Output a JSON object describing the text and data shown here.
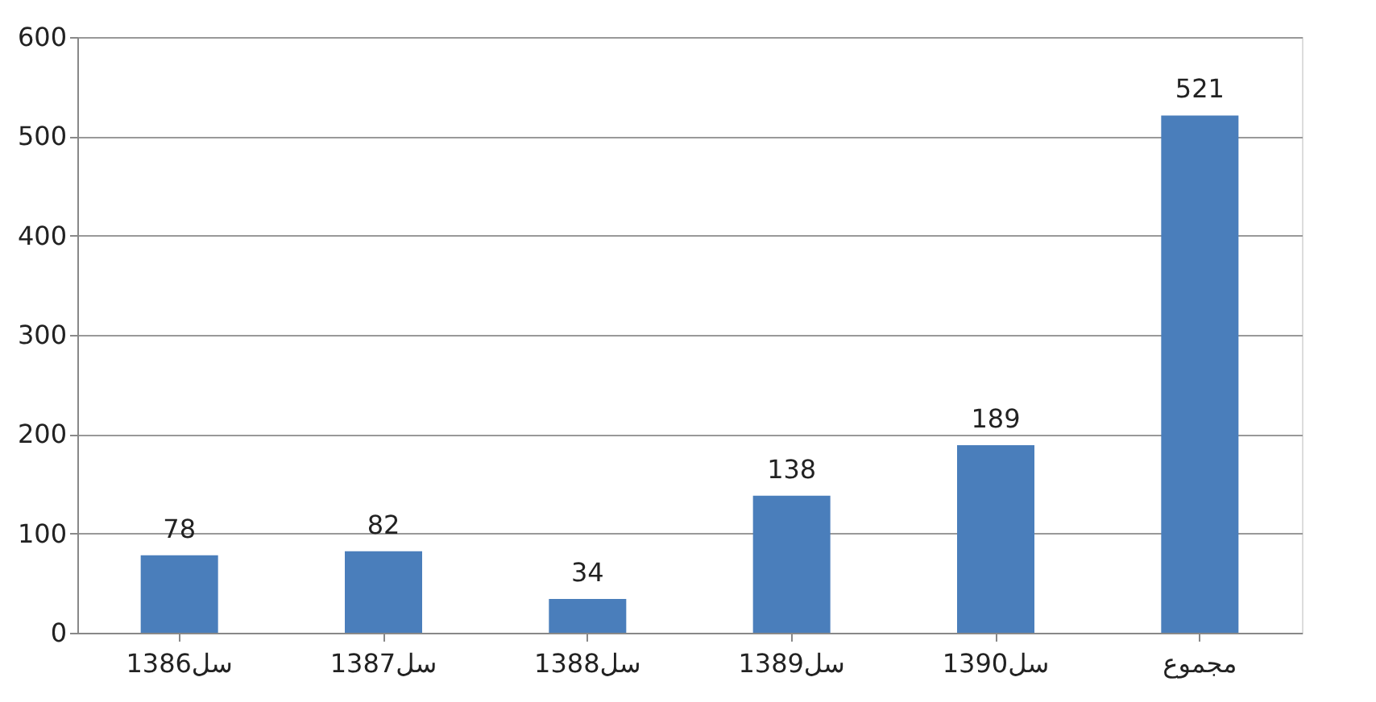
{
  "chart_data": {
    "type": "bar",
    "categories": [
      "1386سل",
      "1387سل",
      "1388سل",
      "1389سل",
      "1390سل",
      "مجموع"
    ],
    "values": [
      78,
      82,
      34,
      138,
      189,
      521
    ],
    "color": "#4a7ebb",
    "ylim": [
      0,
      600
    ],
    "yticks": [
      0,
      100,
      200,
      300,
      400,
      500,
      600
    ],
    "grid": "y",
    "data_labels": true
  }
}
